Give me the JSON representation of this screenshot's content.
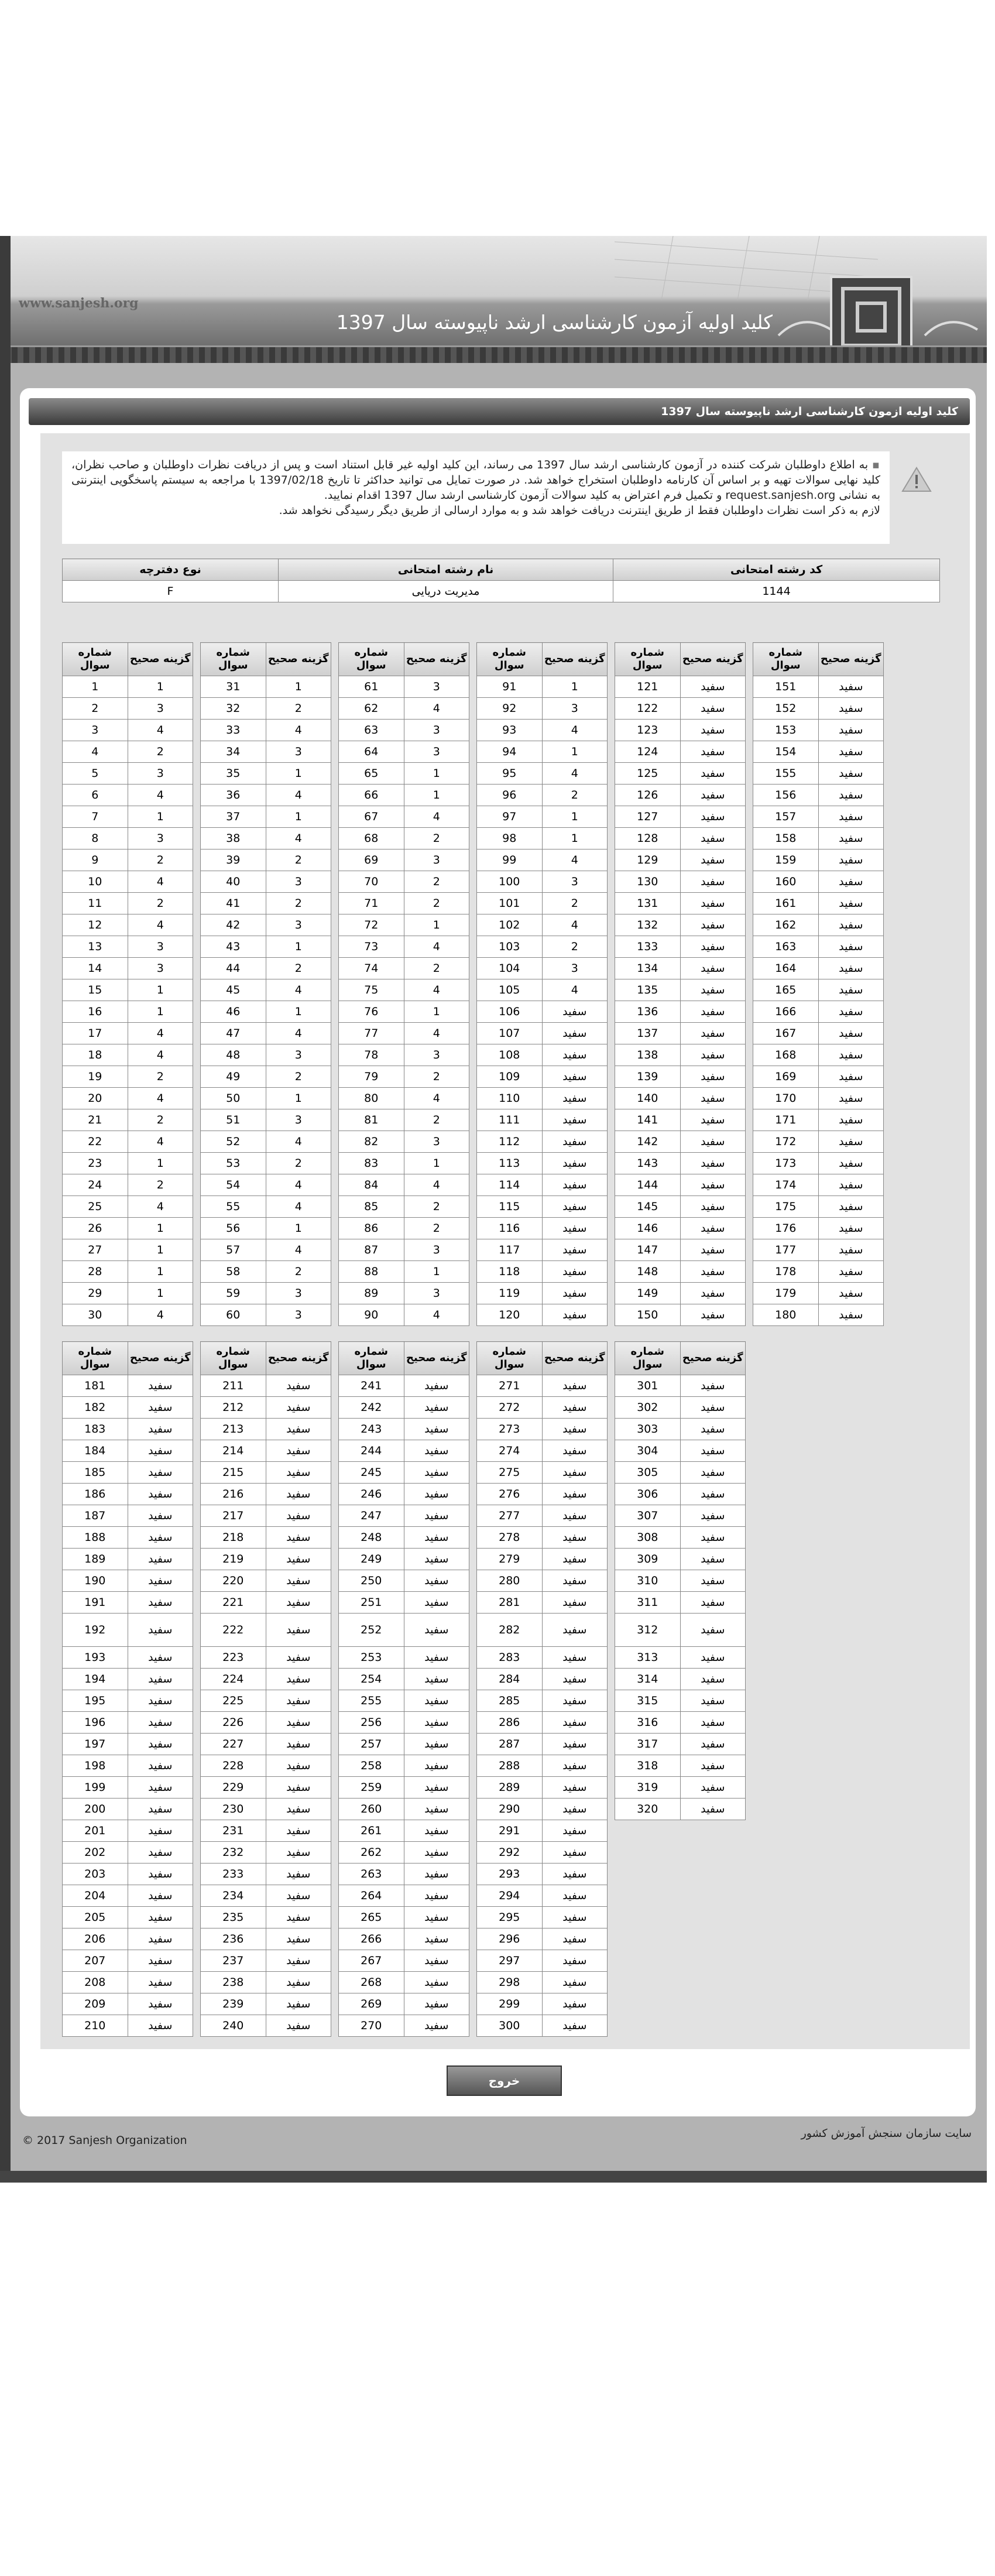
{
  "header": {
    "site": "www.sanjesh.org",
    "title": "کلید اولیه آزمون کارشناسی ارشد ناپیوسته سال 1397"
  },
  "panel_title": "کلید اولیه ازمون کارشناسی ارشد ناپیوسته سال 1397",
  "notice": {
    "paragraph": "به اطلاع داوطلبان شرکت کننده در آزمون کارشناسی ارشد سال 1397 می رساند، این کلید اولیه غیر قابل استناد است و پس از دریافت نظرات داوطلبان و صاحب نظران، کلید نهایی سوالات تهیه و بر اساس آن کارنامه داوطلبان استخراج خواهد شد. در صورت تمایل می توانید حداکثر تا تاریخ 1397/02/18 با مراجعه به سیستم پاسخگویی اینترنتی به نشانی request.sanjesh.org و تکمیل فرم اعتراض به کلید سوالات آزمون کارشناسی ارشد سال 1397 اقدام نمایید.",
    "note": "لازم به ذکر است نظرات داوطلبان فقط از طریق اینترنت دریافت خواهد شد و به موارد ارسالی از طریق دیگر رسیدگی نخواهد شد."
  },
  "exam_info": {
    "headers": [
      "کد رشته امتحانی",
      "نام رشته امتحانی",
      "نوع دفترچه"
    ],
    "values": [
      1144,
      "مدیریت دریایی",
      "F"
    ]
  },
  "answer_key": {
    "question_header": "شماره سوال",
    "answer_header": "گزینه صحیح",
    "questions": [
      1,
      2,
      3,
      4,
      5,
      6,
      7,
      8,
      9,
      10,
      11,
      12,
      13,
      14,
      15,
      16,
      17,
      18,
      19,
      20,
      21,
      22,
      23,
      24,
      25,
      26,
      27,
      28,
      29,
      30,
      31,
      32,
      33,
      34,
      35,
      36,
      37,
      38,
      39,
      40,
      41,
      42,
      43,
      44,
      45,
      46,
      47,
      48,
      49,
      50,
      51,
      52,
      53,
      54,
      55,
      56,
      57,
      58,
      59,
      60,
      61,
      62,
      63,
      64,
      65,
      66,
      67,
      68,
      69,
      70,
      71,
      72,
      73,
      74,
      75,
      76,
      77,
      78,
      79,
      80,
      81,
      82,
      83,
      84,
      85,
      86,
      87,
      88,
      89,
      90,
      91,
      92,
      93,
      94,
      95,
      96,
      97,
      98,
      99,
      100,
      101,
      102,
      103,
      104,
      105,
      106,
      107,
      108,
      109,
      110,
      111,
      112,
      113,
      114,
      115,
      116,
      117,
      118,
      119,
      120,
      121,
      122,
      123,
      124,
      125,
      126,
      127,
      128,
      129,
      130,
      131,
      132,
      133,
      134,
      135,
      136,
      137,
      138,
      139,
      140,
      141,
      142,
      143,
      144,
      145,
      146,
      147,
      148,
      149,
      150,
      151,
      152,
      153,
      154,
      155,
      156,
      157,
      158,
      159,
      160,
      161,
      162,
      163,
      164,
      165,
      166,
      167,
      168,
      169,
      170,
      171,
      172,
      173,
      174,
      175,
      176,
      177,
      178,
      179,
      180,
      181,
      182,
      183,
      184,
      185,
      186,
      187,
      188,
      189,
      190,
      191,
      192,
      193,
      194,
      195,
      196,
      197,
      198,
      199,
      200,
      201,
      202,
      203,
      204,
      205,
      206,
      207,
      208,
      209,
      210,
      211,
      212,
      213,
      214,
      215,
      216,
      217,
      218,
      219,
      220,
      221,
      222,
      223,
      224,
      225,
      226,
      227,
      228,
      229,
      230,
      231,
      232,
      233,
      234,
      235,
      236,
      237,
      238,
      239,
      240,
      241,
      242,
      243,
      244,
      245,
      246,
      247,
      248,
      249,
      250,
      251,
      252,
      253,
      254,
      255,
      256,
      257,
      258,
      259,
      260,
      261,
      262,
      263,
      264,
      265,
      266,
      267,
      268,
      269,
      270,
      271,
      272,
      273,
      274,
      275,
      276,
      277,
      278,
      279,
      280,
      281,
      282,
      283,
      284,
      285,
      286,
      287,
      288,
      289,
      290,
      291,
      292,
      293,
      294,
      295,
      296,
      297,
      298,
      299,
      300,
      301,
      302,
      303,
      304,
      305,
      306,
      307,
      308,
      309,
      310,
      311,
      312,
      313,
      314,
      315,
      316,
      317,
      318,
      319,
      320
    ],
    "answers": [
      1,
      3,
      4,
      2,
      3,
      4,
      1,
      3,
      2,
      4,
      2,
      4,
      3,
      3,
      1,
      1,
      4,
      4,
      2,
      4,
      2,
      4,
      1,
      2,
      4,
      1,
      1,
      1,
      1,
      4,
      1,
      2,
      4,
      3,
      1,
      4,
      1,
      4,
      2,
      3,
      2,
      3,
      1,
      2,
      4,
      1,
      4,
      3,
      2,
      1,
      3,
      4,
      2,
      4,
      4,
      1,
      4,
      2,
      3,
      3,
      3,
      4,
      3,
      3,
      1,
      1,
      4,
      2,
      3,
      2,
      2,
      1,
      4,
      2,
      4,
      1,
      4,
      3,
      2,
      4,
      2,
      3,
      1,
      4,
      2,
      2,
      3,
      1,
      3,
      4,
      1,
      3,
      4,
      1,
      4,
      2,
      1,
      1,
      4,
      3,
      2,
      4,
      2,
      3,
      4,
      "سفید",
      "سفید",
      "سفید",
      "سفید",
      "سفید",
      "سفید",
      "سفید",
      "سفید",
      "سفید",
      "سفید",
      "سفید",
      "سفید",
      "سفید",
      "سفید",
      "سفید",
      "سفید",
      "سفید",
      "سفید",
      "سفید",
      "سفید",
      "سفید",
      "سفید",
      "سفید",
      "سفید",
      "سفید",
      "سفید",
      "سفید",
      "سفید",
      "سفید",
      "سفید",
      "سفید",
      "سفید",
      "سفید",
      "سفید",
      "سفید",
      "سفید",
      "سفید",
      "سفید",
      "سفید",
      "سفید",
      "سفید",
      "سفید",
      "سفید",
      "سفید",
      "سفید",
      "سفید",
      "سفید",
      "سفید",
      "سفید",
      "سفید",
      "سفید",
      "سفید",
      "سفید",
      "سفید",
      "سفید",
      "سفید",
      "سفید",
      "سفید",
      "سفید",
      "سفید",
      "سفید",
      "سفید",
      "سفید",
      "سفید",
      "سفید",
      "سفید",
      "سفید",
      "سفید",
      "سفید",
      "سفید",
      "سفید",
      "سفید",
      "سفید",
      "سفید",
      "سفید",
      "سفید",
      "سفید",
      "سفید",
      "سفید",
      "سفید",
      "سفید",
      "سفید",
      "سفید",
      "سفید",
      "سفید",
      "سفید",
      "سفید",
      "سفید",
      "سفید",
      "سفید",
      "سفید",
      "سفید",
      "سفید",
      "سفید",
      "سفید",
      "سفید",
      "سفید",
      "سفید",
      "سفید",
      "سفید",
      "سفید",
      "سفید",
      "سفید",
      "سفید",
      "سفید",
      "سفید",
      "سفید",
      "سفید",
      "سفید",
      "سفید",
      "سفید",
      "سفید",
      "سفید",
      "سفید",
      "سفید",
      "سفید",
      "سفید",
      "سفید",
      "سفید",
      "سفید",
      "سفید",
      "سفید",
      "سفید",
      "سفید",
      "سفید",
      "سفید",
      "سفید",
      "سفید",
      "سفید",
      "سفید",
      "سفید",
      "سفید",
      "سفید",
      "سفید",
      "سفید",
      "سفید",
      "سفید",
      "سفید",
      "سفید",
      "سفید",
      "سفید",
      "سفید",
      "سفید",
      "سفید",
      "سفید",
      "سفید",
      "سفید",
      "سفید",
      "سفید",
      "سفید",
      "سفید",
      "سفید",
      "سفید",
      "سفید",
      "سفید",
      "سفید",
      "سفید",
      "سفید",
      "سفید",
      "سفید",
      "سفید",
      "سفید",
      "سفید",
      "سفید",
      "سفید",
      "سفید",
      "سفید",
      "سفید",
      "سفید",
      "سفید",
      "سفید",
      "سفید",
      "سفید",
      "سفید",
      "سفید",
      "سفید",
      "سفید",
      "سفید",
      "سفید",
      "سفید",
      "سفید",
      "سفید",
      "سفید",
      "سفید",
      "سفید",
      "سفید",
      "سفید",
      "سفید",
      "سفید",
      "سفید",
      "سفید",
      "سفید",
      "سفید",
      "سفید",
      "سفید",
      "سفید",
      "سفید",
      "سفید",
      "سفید",
      "سفید",
      "سفید",
      "سفید",
      "سفید",
      "سفید",
      "سفید",
      "سفید",
      "سفید",
      "سفید",
      "سفید",
      "سفید",
      "سفید",
      "سفید",
      "سفید",
      "سفید",
      "سفید"
    ]
  },
  "exit_button": "خروج",
  "footer": {
    "copyright": "© 2017 Sanjesh Organization",
    "org": "سایت سازمان سنجش آموزش کشور"
  }
}
